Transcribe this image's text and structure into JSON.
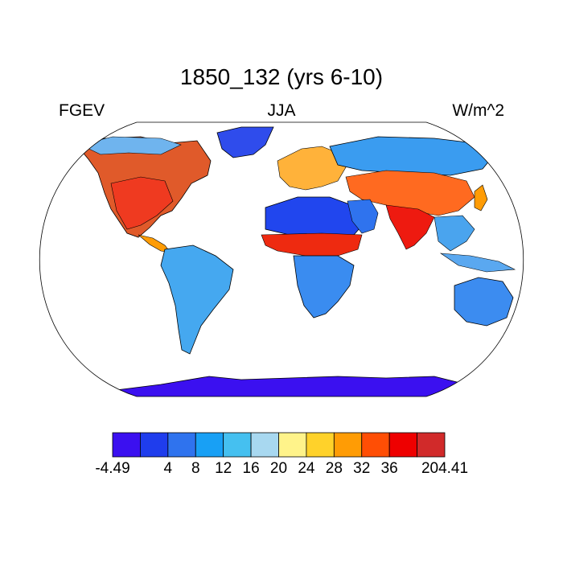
{
  "title": "1850_132 (yrs 6-10)",
  "left_string": "FGEV",
  "center_string": "JJA",
  "right_string": "W/m^2",
  "legend": {
    "colors": [
      "#3b10f0",
      "#1f3ded",
      "#2f73ee",
      "#18a0f5",
      "#45c0f0",
      "#a8d8f0",
      "#fff38a",
      "#ffd22a",
      "#ff9c05",
      "#ff4e05",
      "#ee0000",
      "#d12a2a"
    ],
    "labels": [
      "-4.49",
      "4",
      "8",
      "12",
      "16",
      "20",
      "24",
      "28",
      "32",
      "36",
      "204.41"
    ]
  },
  "colors": {
    "ocean": "#ffffff",
    "coast": "#000000"
  }
}
